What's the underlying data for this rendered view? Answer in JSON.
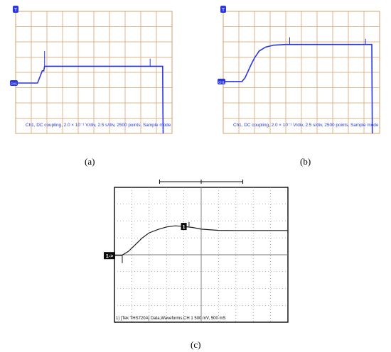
{
  "captions": {
    "a": "(a)",
    "b": "(b)",
    "c": "(c)"
  },
  "colors": {
    "blue_trace": "#2a36e0",
    "grid_orange": "#d4a26e",
    "dark_screen": "#0a0a0a",
    "grid_gray": "#7a7a7a",
    "trace_black": "#1a1a1a"
  },
  "chart_data": [
    {
      "type": "line",
      "title": "",
      "info_text": "Ch1, DC coupling, 2.0 × 10⁻¹ V/div, 2.5 s/div, 2500 points, Sample mode",
      "trigger_marker": "T",
      "channel_marker": "CH1",
      "xlim": [
        0,
        10
      ],
      "ylim": [
        -5,
        3
      ],
      "x_divisions": 10,
      "y_divisions": 8,
      "grid": true,
      "series": [
        {
          "points": [
            [
              0,
              -1.7
            ],
            [
              1.4,
              -1.7
            ],
            [
              1.55,
              -1.3
            ],
            [
              1.7,
              -0.9
            ],
            [
              1.8,
              -0.9
            ],
            [
              1.85,
              -0.6
            ],
            [
              2.0,
              -0.6
            ],
            [
              9.4,
              -0.6
            ],
            [
              9.42,
              -3.7
            ],
            [
              9.43,
              -5
            ]
          ],
          "spikes": [
            [
              1.85,
              0.4
            ],
            [
              8.6,
              -0.1
            ]
          ]
        }
      ]
    },
    {
      "type": "line",
      "title": "",
      "info_text": "Ch1, DC coupling, 2.0 × 10⁻¹ V/div, 2.5 s/div, 2500 points, Sample mode",
      "trigger_marker": "T",
      "channel_marker": "CH1",
      "xlim": [
        0,
        10
      ],
      "ylim": [
        -5,
        3
      ],
      "x_divisions": 10,
      "y_divisions": 8,
      "grid": true,
      "series": [
        {
          "points": [
            [
              0,
              -1.6
            ],
            [
              1.2,
              -1.6
            ],
            [
              1.4,
              -1.35
            ],
            [
              1.6,
              -0.9
            ],
            [
              1.8,
              -0.45
            ],
            [
              2.0,
              -0.05
            ],
            [
              2.3,
              0.4
            ],
            [
              2.7,
              0.65
            ],
            [
              3.2,
              0.78
            ],
            [
              4.0,
              0.83
            ],
            [
              9.5,
              0.83
            ],
            [
              9.52,
              -2.5
            ],
            [
              9.53,
              -5
            ]
          ],
          "spikes": [
            [
              4.25,
              1.3
            ],
            [
              9.1,
              1.2
            ]
          ]
        }
      ]
    },
    {
      "type": "line",
      "title": "",
      "info_text": "1) [Tek THS720A] Data,Waveforms,CH 1 500 mV, 500 mS",
      "channel_marker": "1->",
      "trigger_marker": "1",
      "xlim": [
        0,
        10
      ],
      "ylim": [
        -4,
        4
      ],
      "x_divisions": 10,
      "y_divisions": 8,
      "grid": true,
      "series": [
        {
          "points": [
            [
              0,
              -0.05
            ],
            [
              0.4,
              -0.05
            ],
            [
              0.8,
              0.2
            ],
            [
              1.2,
              0.6
            ],
            [
              1.6,
              1.0
            ],
            [
              2.0,
              1.3
            ],
            [
              2.5,
              1.5
            ],
            [
              3.0,
              1.65
            ],
            [
              3.5,
              1.72
            ],
            [
              4.0,
              1.68
            ],
            [
              4.5,
              1.62
            ],
            [
              5.0,
              1.52
            ],
            [
              6.0,
              1.45
            ],
            [
              7.0,
              1.44
            ],
            [
              8.0,
              1.44
            ],
            [
              9.0,
              1.44
            ],
            [
              10.0,
              1.44
            ]
          ],
          "spikes": [
            [
              0.45,
              -0.5
            ],
            [
              4.3,
              1.95
            ]
          ]
        }
      ]
    }
  ]
}
